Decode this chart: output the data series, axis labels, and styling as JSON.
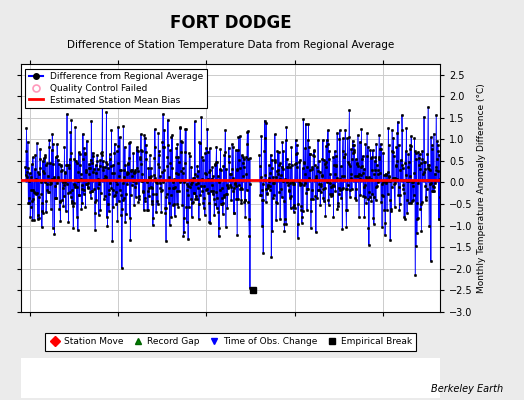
{
  "title": "FORT DODGE",
  "subtitle": "Difference of Station Temperature Data from Regional Average",
  "ylabel": "Monthly Temperature Anomaly Difference (°C)",
  "xlim": [
    1898,
    1993
  ],
  "ylim": [
    -3,
    2.75
  ],
  "yticks": [
    -3,
    -2.5,
    -2,
    -1.5,
    -1,
    -0.5,
    0,
    0.5,
    1,
    1.5,
    2,
    2.5
  ],
  "xticks": [
    1900,
    1920,
    1940,
    1960,
    1980
  ],
  "bias_line_y": 0.05,
  "empirical_break_x": 1950.5,
  "empirical_break_y": -2.5,
  "line_color": "#0000FF",
  "dot_color": "#000000",
  "bias_color": "#FF0000",
  "background_color": "#EBEBEB",
  "plot_bg_color": "#FFFFFF",
  "grid_color": "#CCCCCC",
  "watermark": "Berkeley Earth",
  "seed": 42,
  "years_start": 1899.0,
  "years_end": 1993.0,
  "gap_start": 1950.0,
  "gap_end": 1952.0
}
